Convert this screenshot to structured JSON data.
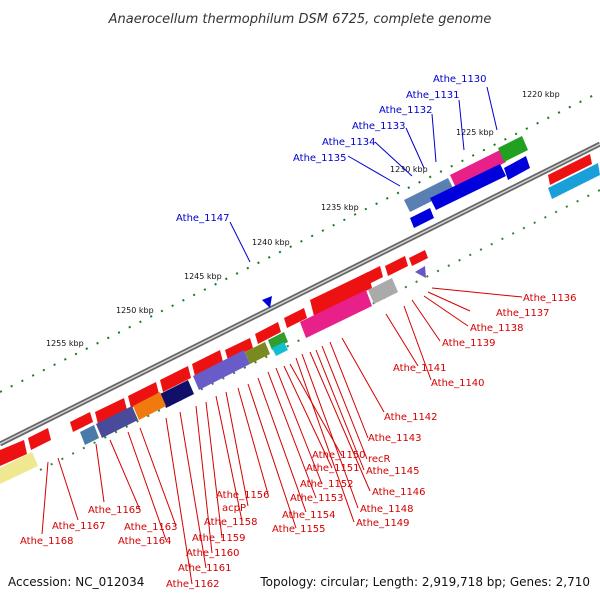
{
  "title": "Anaerocellum thermophilum DSM 6725, complete genome",
  "footer": {
    "accession": "Accession: NC_012034",
    "topology": "Topology: circular; Length: 2,919,718 bp; Genes: 2,710"
  },
  "kbp_ticks": [
    "1220 kbp",
    "1225 kbp",
    "1230 kbp",
    "1235 kbp",
    "1240 kbp",
    "1245 kbp",
    "1250 kbp",
    "1255 kbp"
  ],
  "genes_blue": [
    "Athe_1130",
    "Athe_1131",
    "Athe_1132",
    "Athe_1133",
    "Athe_1134",
    "Athe_1135",
    "Athe_1147"
  ],
  "genes_red_right": [
    "Athe_1136",
    "Athe_1137",
    "Athe_1138",
    "Athe_1139",
    "Athe_1140",
    "Athe_1141",
    "Athe_1142",
    "Athe_1143",
    "recR",
    "Athe_1145",
    "Athe_1146",
    "Athe_1148",
    "Athe_1149"
  ],
  "genes_red_bottom": [
    "Athe_1150",
    "Athe_1151",
    "Athe_1152",
    "Athe_1153",
    "Athe_1154",
    "Athe_1155",
    "Athe_1156",
    "acpP",
    "Athe_1158",
    "Athe_1159",
    "Athe_1160",
    "Athe_1161",
    "Athe_1162",
    "Athe_1163",
    "Athe_1164",
    "Athe_1165",
    "Athe_1167",
    "Athe_1168"
  ],
  "colors": {
    "forward": "#ee1111",
    "reverse": "#0000dd",
    "label_red": "#d40000",
    "label_blue": "#0000cc",
    "backbone": "#888888",
    "tick": "#1a7a1a"
  }
}
